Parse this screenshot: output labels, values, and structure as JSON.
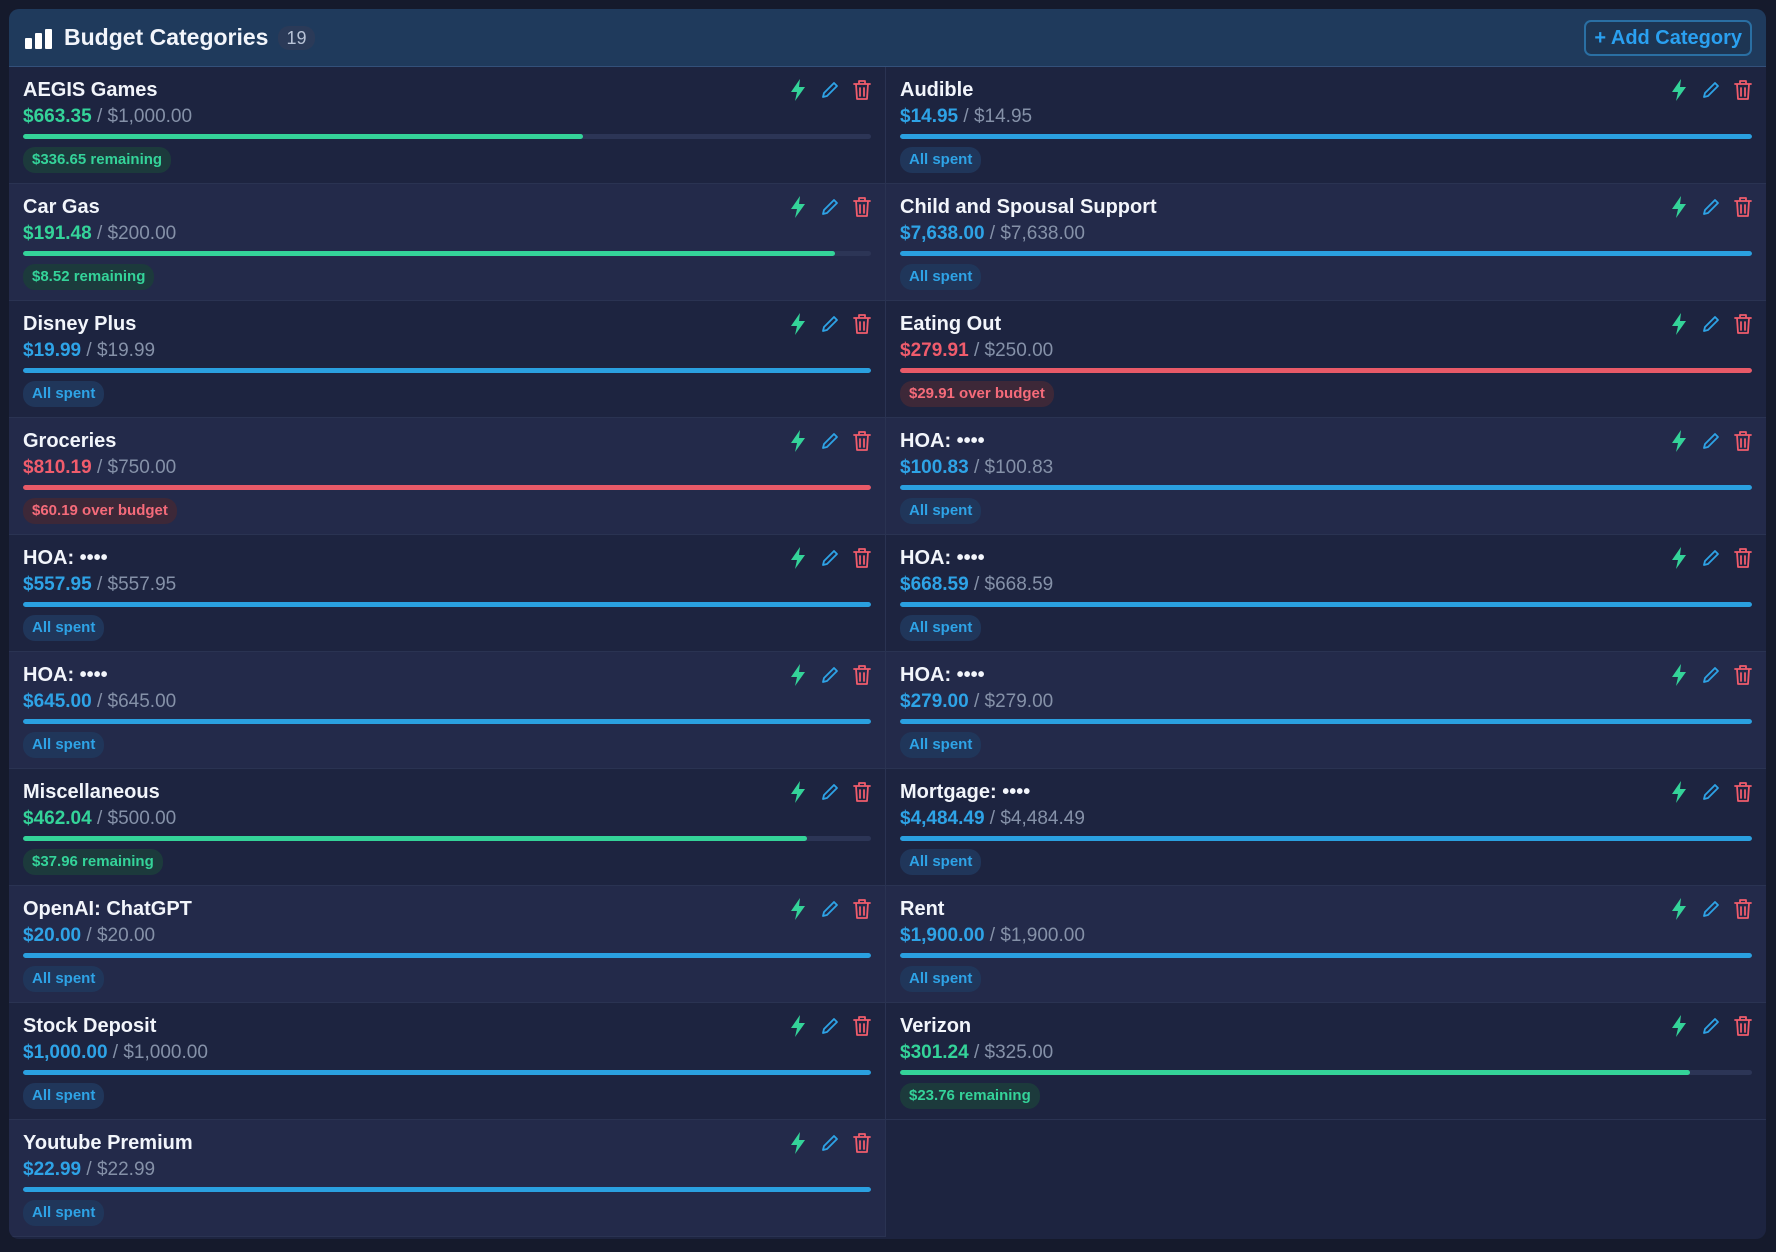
{
  "header": {
    "title": "Budget Categories",
    "count": "19",
    "add_label": "+ Add Category",
    "icon": "bar-chart-icon"
  },
  "colors": {
    "remaining": "#34d399",
    "spent": "#2ea3e6",
    "over": "#f05c6c"
  },
  "categories": [
    {
      "name": "AEGIS Games",
      "spent": "$663.35",
      "budget": "$1,000.00",
      "progress": 0.66,
      "status": "remaining",
      "badge": "$336.65 remaining"
    },
    {
      "name": "Audible",
      "spent": "$14.95",
      "budget": "$14.95",
      "progress": 1.0,
      "status": "spent",
      "badge": "All spent"
    },
    {
      "name": "Car Gas",
      "spent": "$191.48",
      "budget": "$200.00",
      "progress": 0.957,
      "status": "remaining",
      "badge": "$8.52 remaining"
    },
    {
      "name": "Child and Spousal Support",
      "spent": "$7,638.00",
      "budget": "$7,638.00",
      "progress": 1.0,
      "status": "spent",
      "badge": "All spent"
    },
    {
      "name": "Disney Plus",
      "spent": "$19.99",
      "budget": "$19.99",
      "progress": 1.0,
      "status": "spent",
      "badge": "All spent"
    },
    {
      "name": "Eating Out",
      "spent": "$279.91",
      "budget": "$250.00",
      "progress": 1.0,
      "status": "over",
      "badge": "$29.91 over budget"
    },
    {
      "name": "Groceries",
      "spent": "$810.19",
      "budget": "$750.00",
      "progress": 1.0,
      "status": "over",
      "badge": "$60.19 over budget"
    },
    {
      "name": "HOA: ••••",
      "spent": "$100.83",
      "budget": "$100.83",
      "progress": 1.0,
      "status": "spent",
      "badge": "All spent"
    },
    {
      "name": "HOA: ••••",
      "spent": "$557.95",
      "budget": "$557.95",
      "progress": 1.0,
      "status": "spent",
      "badge": "All spent"
    },
    {
      "name": "HOA: ••••",
      "spent": "$668.59",
      "budget": "$668.59",
      "progress": 1.0,
      "status": "spent",
      "badge": "All spent"
    },
    {
      "name": "HOA: ••••",
      "spent": "$645.00",
      "budget": "$645.00",
      "progress": 1.0,
      "status": "spent",
      "badge": "All spent"
    },
    {
      "name": "HOA: ••••",
      "spent": "$279.00",
      "budget": "$279.00",
      "progress": 1.0,
      "status": "spent",
      "badge": "All spent"
    },
    {
      "name": "Miscellaneous",
      "spent": "$462.04",
      "budget": "$500.00",
      "progress": 0.924,
      "status": "remaining",
      "badge": "$37.96 remaining"
    },
    {
      "name": "Mortgage: ••••",
      "spent": "$4,484.49",
      "budget": "$4,484.49",
      "progress": 1.0,
      "status": "spent",
      "badge": "All spent"
    },
    {
      "name": "OpenAI: ChatGPT",
      "spent": "$20.00",
      "budget": "$20.00",
      "progress": 1.0,
      "status": "spent",
      "badge": "All spent"
    },
    {
      "name": "Rent",
      "spent": "$1,900.00",
      "budget": "$1,900.00",
      "progress": 1.0,
      "status": "spent",
      "badge": "All spent"
    },
    {
      "name": "Stock Deposit",
      "spent": "$1,000.00",
      "budget": "$1,000.00",
      "progress": 1.0,
      "status": "spent",
      "badge": "All spent"
    },
    {
      "name": "Verizon",
      "spent": "$301.24",
      "budget": "$325.00",
      "progress": 0.927,
      "status": "remaining",
      "badge": "$23.76 remaining"
    },
    {
      "name": "Youtube Premium",
      "spent": "$22.99",
      "budget": "$22.99",
      "progress": 1.0,
      "status": "spent",
      "badge": "All spent"
    }
  ],
  "actions": {
    "quick_icon": "lightning-icon",
    "edit_icon": "pencil-icon",
    "delete_icon": "trash-icon"
  }
}
